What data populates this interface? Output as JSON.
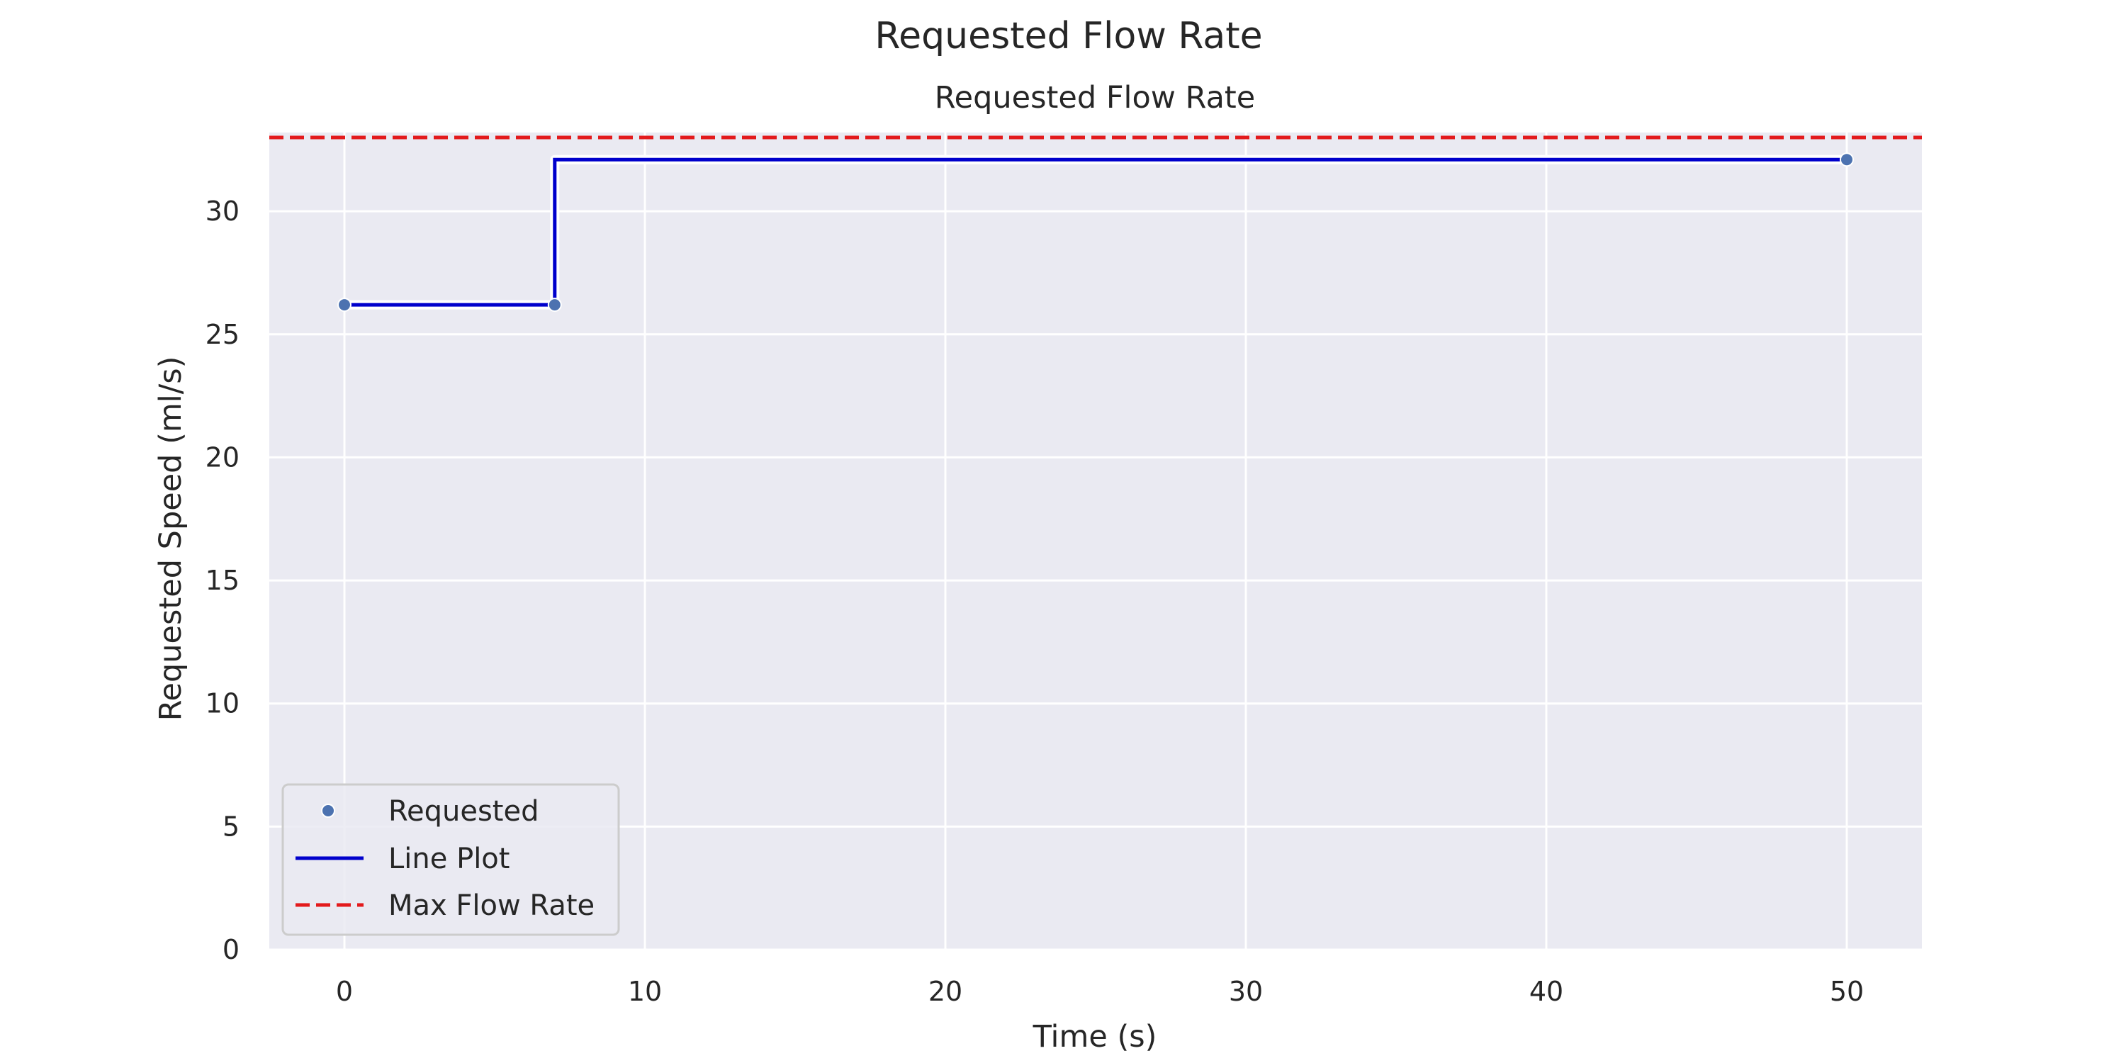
{
  "chart_data": {
    "type": "line",
    "suptitle": "Requested Flow Rate",
    "title": "Requested Flow Rate",
    "xlabel": "Time (s)",
    "ylabel": "Requested Speed (ml/s)",
    "xlim": [
      -2.5,
      52.5
    ],
    "ylim": [
      0,
      33.2
    ],
    "xticks": [
      0,
      10,
      20,
      30,
      40,
      50
    ],
    "yticks": [
      0,
      5,
      10,
      15,
      20,
      25,
      30
    ],
    "grid": true,
    "legend_position": "lower-left",
    "series": [
      {
        "name": "Requested",
        "kind": "scatter",
        "color": "#4c72b0",
        "x": [
          0,
          7,
          50
        ],
        "y": [
          26.2,
          26.2,
          32.1
        ]
      },
      {
        "name": "Line Plot",
        "kind": "step",
        "color": "#0000cc",
        "x": [
          0,
          7,
          7,
          50
        ],
        "y": [
          26.2,
          26.2,
          32.1,
          32.1
        ]
      },
      {
        "name": "Max Flow Rate",
        "kind": "hline",
        "color": "#e31a1c",
        "y": 33
      }
    ]
  }
}
